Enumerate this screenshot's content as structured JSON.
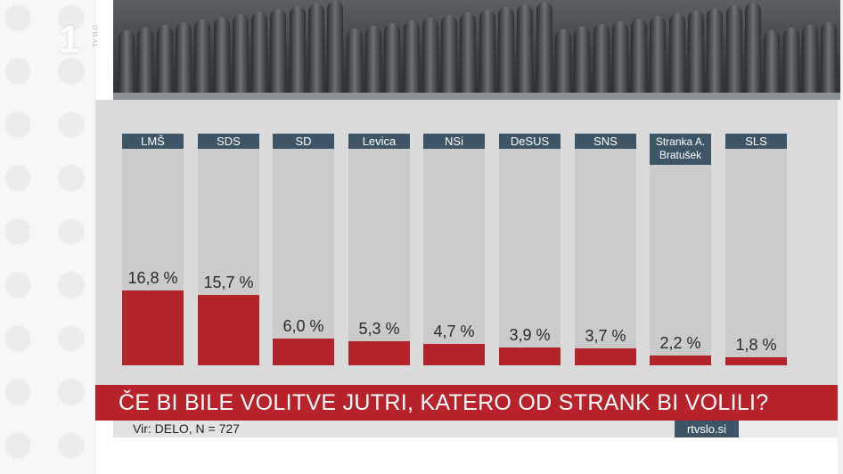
{
  "channel_logo": {
    "number": "1",
    "sub": "TV SLO"
  },
  "banner": {
    "question": "ČE BI BILE VOLITVE JUTRI, KATERO OD STRANK BI VOLILI?"
  },
  "source": {
    "text": "Vir: DELO, N = 727",
    "site": "rtvslo.si"
  },
  "colors": {
    "bar": "#b3232a",
    "label_bg": "#3d5566",
    "banner": "#b8232b"
  },
  "chart_data": {
    "type": "bar",
    "categories": [
      "LMŠ",
      "SDS",
      "SD",
      "Levica",
      "NSi",
      "DeSUS",
      "SNS",
      "Stranka A. Bratušek",
      "SLS"
    ],
    "values": [
      16.8,
      15.7,
      6.0,
      5.3,
      4.7,
      3.9,
      3.7,
      2.2,
      1.8
    ],
    "value_labels": [
      "16,8 %",
      "15,7 %",
      "6,0 %",
      "5,3 %",
      "4,7 %",
      "3,9 %",
      "3,7 %",
      "2,2 %",
      "1,8 %"
    ],
    "unit": "%",
    "ylim": [
      0,
      50
    ],
    "legend": "none",
    "grid": false
  }
}
